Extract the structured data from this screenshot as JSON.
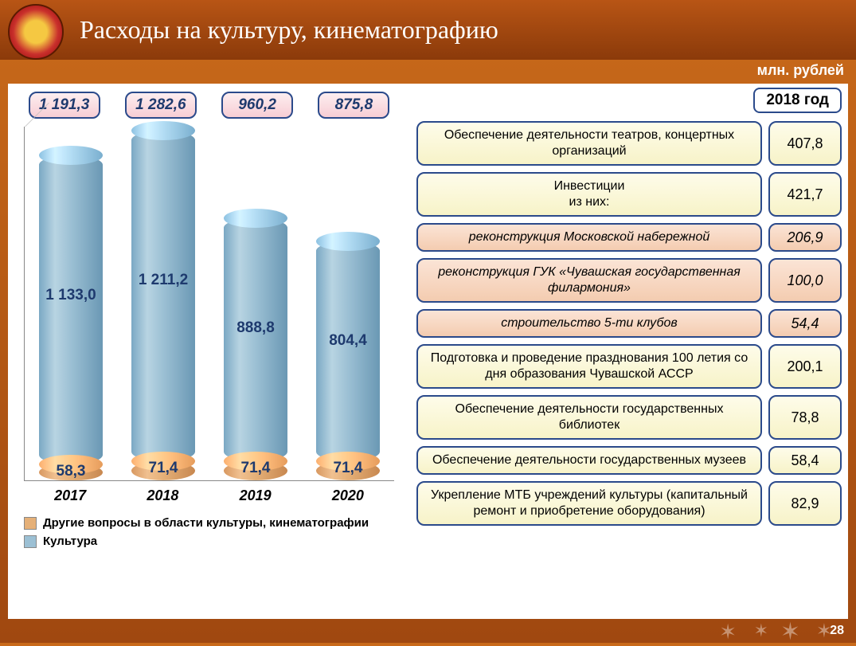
{
  "header": {
    "title": "Расходы на культуру, кинематографию",
    "subtitle": "млн. рублей",
    "page_number": "28"
  },
  "chart": {
    "type": "stacked-cylinder-bar",
    "max_value": 1300,
    "years": [
      "2017",
      "2018",
      "2019",
      "2020"
    ],
    "totals": [
      "1 191,3",
      "1 282,6",
      "960,2",
      "875,8"
    ],
    "series": [
      {
        "name": "Другие вопросы в области культуры, кинематографии",
        "color": "#e5b078",
        "values": [
          "58,3",
          "71,4",
          "71,4",
          "71,4"
        ],
        "num": [
          58.3,
          71.4,
          71.4,
          71.4
        ]
      },
      {
        "name": "Культура",
        "color": "#9cc0d4",
        "values": [
          "1 133,0",
          "1 211,2",
          "888,8",
          "804,4"
        ],
        "num": [
          1133.0,
          1211.2,
          888.8,
          804.4
        ]
      }
    ],
    "label_color": "#1e3a6e",
    "label_fontsize": 19,
    "year_fontsize": 18,
    "total_badge_bg": "#f7cdd4",
    "border_color": "#2b4a8b"
  },
  "right": {
    "year_label": "2018 год",
    "rows": [
      {
        "label": "Обеспечение деятельности театров, концертных организаций",
        "value": "407,8",
        "style": "yellow"
      },
      {
        "label": "Инвестиции\nиз них:",
        "value": "421,7",
        "style": "yellow"
      },
      {
        "label": "реконструкция Московской набережной",
        "value": "206,9",
        "style": "pink"
      },
      {
        "label": "реконструкция ГУК «Чувашская государственная филармония»",
        "value": "100,0",
        "style": "pink"
      },
      {
        "label": "строительство 5-ти клубов",
        "value": "54,4",
        "style": "pink"
      },
      {
        "label": "Подготовка и проведение празднования 100 летия со дня образования Чувашской АССР",
        "value": "200,1",
        "style": "yellow"
      },
      {
        "label": "Обеспечение деятельности государственных библиотек",
        "value": "78,8",
        "style": "yellow"
      },
      {
        "label": "Обеспечение деятельности государственных музеев",
        "value": "58,4",
        "style": "yellow"
      },
      {
        "label": "Укрепление МТБ учреждений культуры (капитальный ремонт и приобретение оборудования)",
        "value": "82,9",
        "style": "yellow"
      }
    ]
  },
  "colors": {
    "page_bg_top": "#c96a1a",
    "page_bg_bottom": "#a04810",
    "header_top": "#b85515",
    "header_bottom": "#8b3a0a",
    "box_border": "#2b4a8b",
    "yellow_box": "#f7f3c8",
    "pink_box": "#f4ccb0"
  }
}
